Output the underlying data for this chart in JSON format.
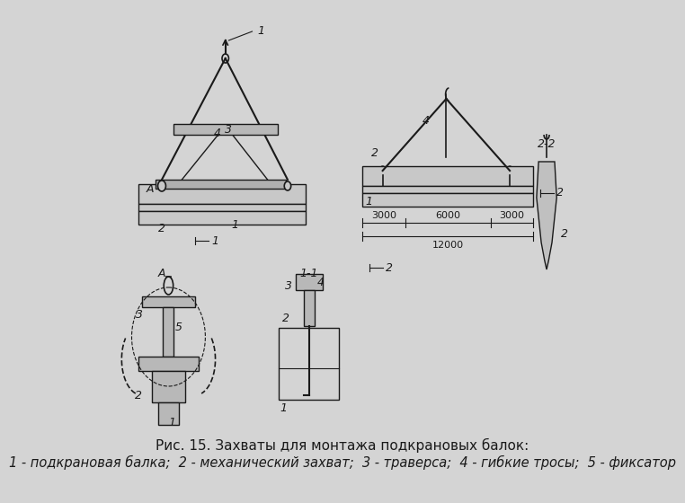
{
  "background_color": "#d4d4d4",
  "figure_bg": "#d4d4d4",
  "title_line1": "Рис. 15. Захваты для монтажа подкрановых балок:",
  "title_line2": "1 - подкрановая балка;  2 - механический захват;  3 - траверса;  4 - гибкие тросы;  5 - фиксатор",
  "title_fontsize": 11,
  "caption_fontsize": 10.5,
  "line_color": "#1a1a1a",
  "text_color": "#1a1a1a"
}
